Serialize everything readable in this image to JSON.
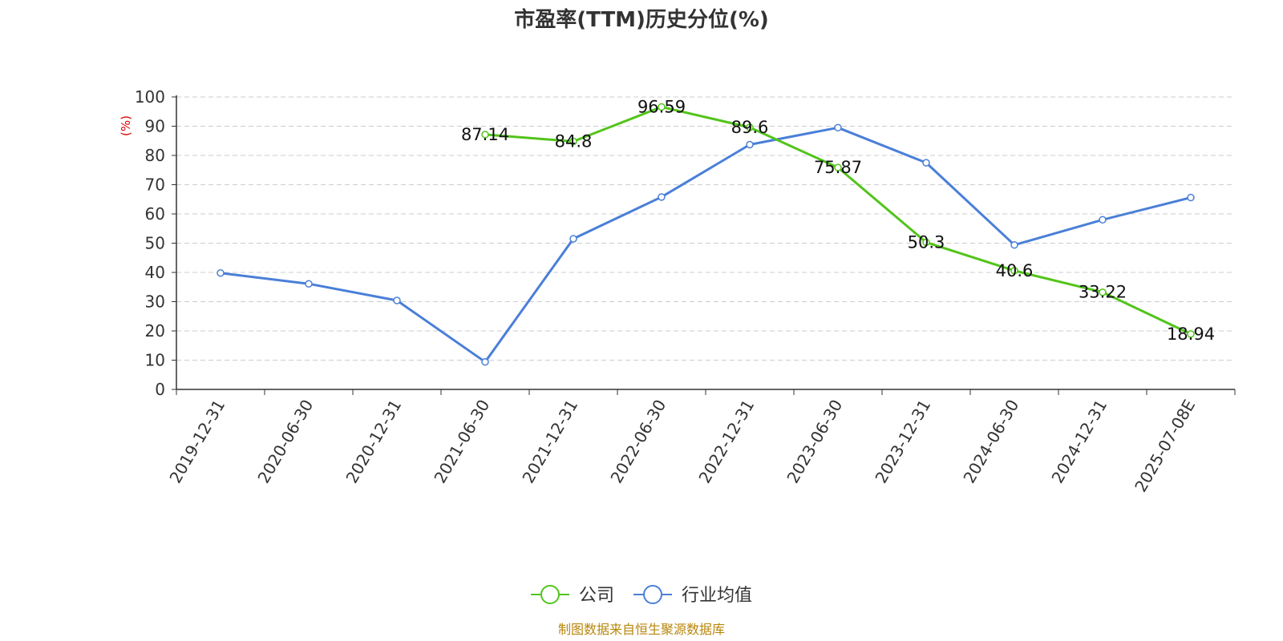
{
  "chart_data": {
    "type": "line",
    "title": "市盈率(TTM)历史分位(%)",
    "ylabel": "(%)",
    "ylim": [
      0,
      100
    ],
    "yticks": [
      0,
      10,
      20,
      30,
      40,
      50,
      60,
      70,
      80,
      90,
      100
    ],
    "grid": true,
    "legend_position": "bottom",
    "categories": [
      "2019-12-31",
      "2020-06-30",
      "2020-12-31",
      "2021-06-30",
      "2021-12-31",
      "2022-06-30",
      "2022-12-31",
      "2023-06-30",
      "2023-12-31",
      "2024-06-30",
      "2024-12-31",
      "2025-07-08E"
    ],
    "series": [
      {
        "name": "公司",
        "color": "#52c41a",
        "show_labels": true,
        "values": [
          null,
          null,
          null,
          87.14,
          84.8,
          96.59,
          89.6,
          75.87,
          50.3,
          40.6,
          33.22,
          18.94
        ],
        "labels": [
          "",
          "",
          "",
          "87.14",
          "84.8",
          "96.59",
          "89.6",
          "75.87",
          "50.3",
          "40.6",
          "33.22",
          "18.94"
        ]
      },
      {
        "name": "行业均值",
        "color": "#4a7fd8",
        "show_labels": false,
        "values": [
          39.8,
          36.1,
          30.4,
          9.4,
          51.5,
          65.8,
          83.7,
          89.5,
          77.5,
          49.4,
          58.0,
          65.6
        ]
      }
    ],
    "source": "制图数据来自恒生聚源数据库"
  }
}
